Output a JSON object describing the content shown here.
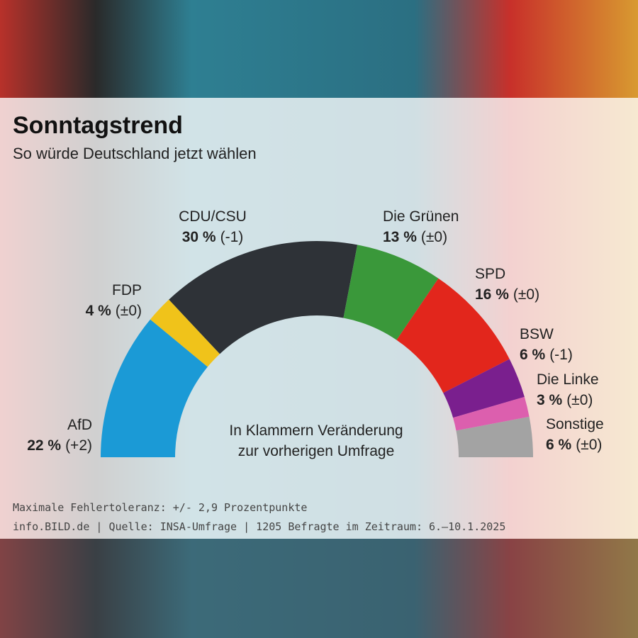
{
  "chart_data": {
    "type": "semidonut",
    "title": "Sonntagstrend",
    "subtitle": "So würde Deutschland jetzt wählen",
    "categories": [
      "AfD",
      "FDP",
      "CDU/CSU",
      "Die Grünen",
      "SPD",
      "BSW",
      "Die Linke",
      "Sonstige"
    ],
    "values": [
      22,
      4,
      30,
      13,
      16,
      6,
      3,
      6
    ],
    "value_labels": [
      "22 %",
      "4 %",
      "30 %",
      "13 %",
      "16 %",
      "6 %",
      "3 %",
      "6 %"
    ],
    "change_labels": [
      "(+2)",
      "(±0)",
      "(-1)",
      "(±0)",
      "(±0)",
      "(-1)",
      "(±0)",
      "(±0)"
    ],
    "colors": [
      "#1b9ad6",
      "#f0c31a",
      "#2e3237",
      "#3a983a",
      "#e2261c",
      "#7a1f8e",
      "#dc5fae",
      "#a3a3a3"
    ],
    "center_note": [
      "In Klammern Veränderung",
      "zur vorherigen Umfrage"
    ],
    "footnotes": [
      "Maximale Fehlertoleranz: +/- 2,9 Prozentpunkte",
      "info.BILD.de | Quelle: INSA-Umfrage | 1205 Befragte im Zeitraum: 6.–10.1.2025"
    ]
  }
}
